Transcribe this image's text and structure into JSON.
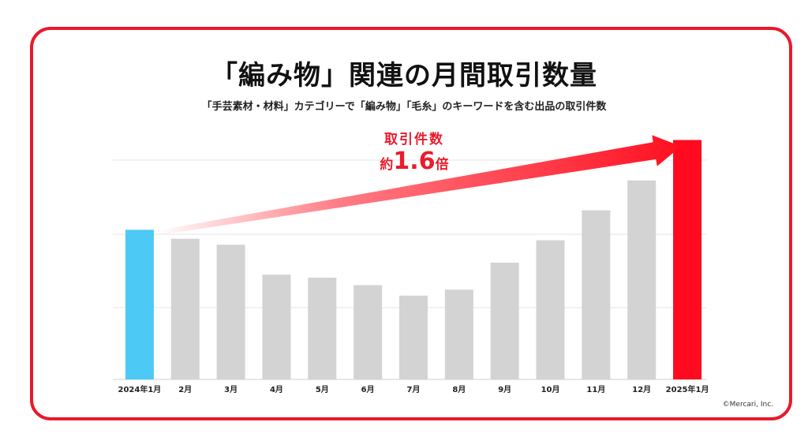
{
  "title": "「編み物」関連の月間取引数量",
  "subtitle": "「手芸素材・材料」カテゴリーで「編み物」「毛糸」のキーワードを含む出品の取引件数",
  "callout": {
    "line1": "取引件数",
    "prefix": "約",
    "value": "1.6",
    "suffix": "倍"
  },
  "copyright": "©Mercari, Inc.",
  "colors": {
    "frame": "#e8192c",
    "bar_default": "#d3d3d3",
    "bar_start": "#4cc9f5",
    "bar_end": "#ff0a1e",
    "arrow": "#ff1020"
  },
  "chart_data": {
    "type": "bar",
    "categories": [
      "2024年1月",
      "2月",
      "3月",
      "4月",
      "5月",
      "6月",
      "7月",
      "8月",
      "9月",
      "10月",
      "11月",
      "12月",
      "2025年1月"
    ],
    "values": [
      1.0,
      0.94,
      0.9,
      0.7,
      0.68,
      0.63,
      0.56,
      0.6,
      0.78,
      0.93,
      1.13,
      1.33,
      1.6
    ],
    "ylim": [
      0,
      1.65
    ],
    "grid": true,
    "y_tick_labels_shown": false,
    "annotation": "取引件数 約1.6倍"
  }
}
